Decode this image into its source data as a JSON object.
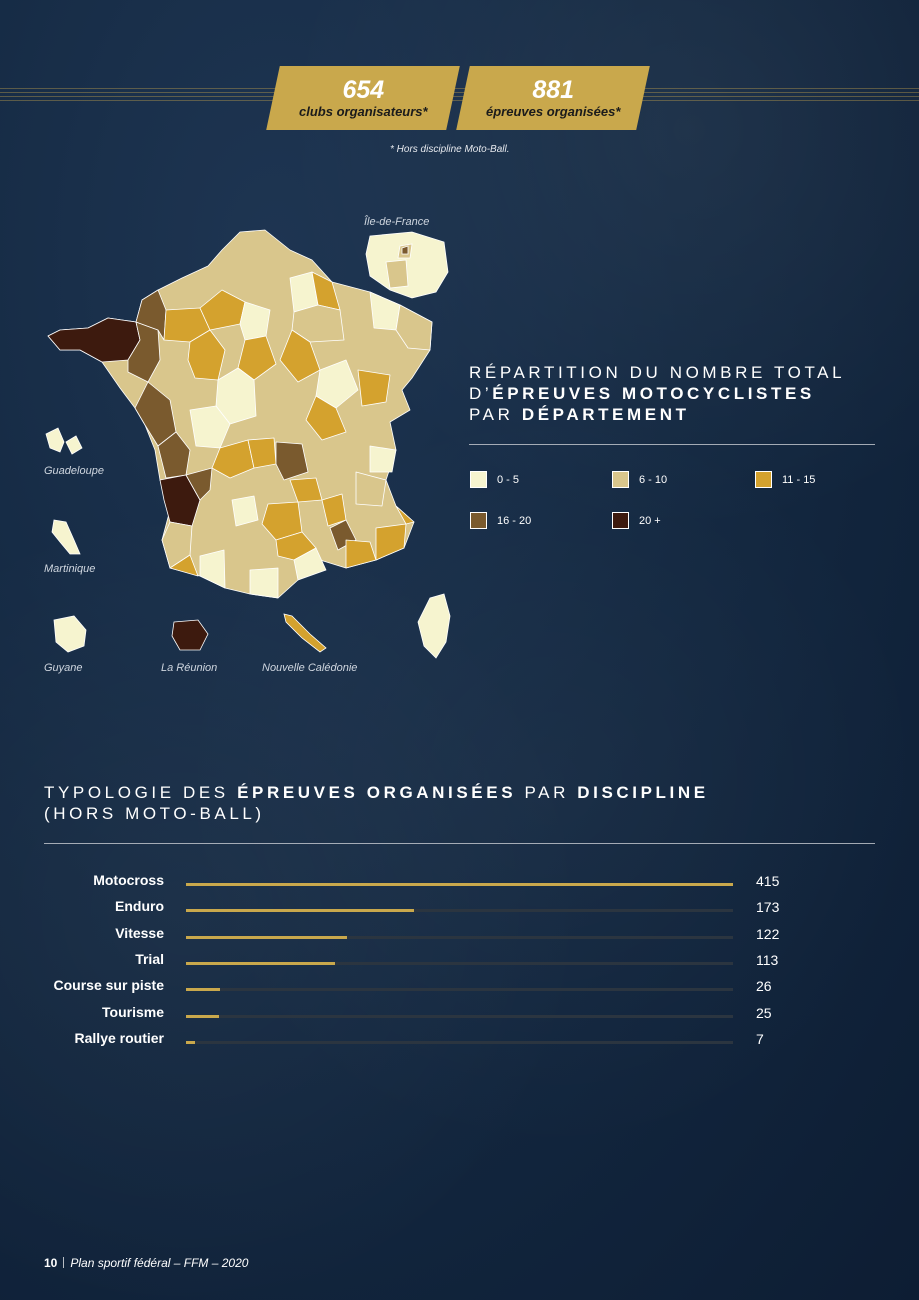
{
  "stats": {
    "clubs": {
      "value": "654",
      "label": "clubs organisateurs*"
    },
    "epreuves": {
      "value": "881",
      "label": "épreuves organisées*"
    },
    "footnote": "* Hors discipline Moto-Ball."
  },
  "map": {
    "region_labels": {
      "idf": "Île-de-France",
      "guadeloupe": "Guadeloupe",
      "martinique": "Martinique",
      "guyane": "Guyane",
      "reunion": "La Réunion",
      "nouvelle_caledonie": "Nouvelle Calédonie"
    },
    "classes": [
      {
        "label": "0 - 5",
        "color": "#f6f4cf"
      },
      {
        "label": "6 - 10",
        "color": "#d9c68c"
      },
      {
        "label": "11 - 15",
        "color": "#d4a22e"
      },
      {
        "label": "16 - 20",
        "color": "#7a5a2e"
      },
      {
        "label": "20 +",
        "color": "#3d1a0e"
      }
    ]
  },
  "legend": {
    "title_line1": "RÉPARTITION DU NOMBRE TOTAL",
    "title_line2_prefix": "D’",
    "title_line2_bold": "ÉPREUVES MOTOCYCLISTES",
    "title_line3_prefix": "PAR ",
    "title_line3_bold": "DÉPARTEMENT"
  },
  "chart_data": {
    "type": "bar",
    "title_part1": "TYPOLOGIE DES ",
    "title_bold1": "ÉPREUVES ORGANISÉES",
    "title_part2": " PAR ",
    "title_bold2": "DISCIPLINE",
    "subtitle": "(HORS MOTO-BALL)",
    "categories": [
      "Motocross",
      "Enduro",
      "Vitesse",
      "Trial",
      "Course sur piste",
      "Tourisme",
      "Rallye routier"
    ],
    "values": [
      415,
      173,
      122,
      113,
      26,
      25,
      7
    ],
    "xlim": [
      0,
      415
    ],
    "color": "#c9a84c"
  },
  "footer": {
    "page": "10",
    "text": "Plan sportif fédéral – FFM – 2020"
  }
}
